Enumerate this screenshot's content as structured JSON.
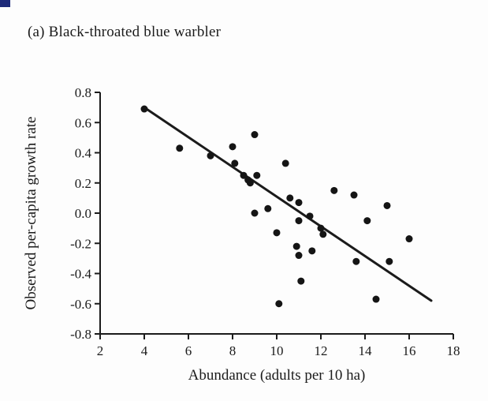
{
  "page": {
    "background": "#fdfdfd",
    "corner_mark_color": "#1e2b7a"
  },
  "figure": {
    "title": "(a) Black-throated blue warbler"
  },
  "chart_data": {
    "type": "scatter",
    "title": "(a) Black-throated blue warbler",
    "xlabel": "Abundance (adults per 10 ha)",
    "ylabel": "Observed per-capita growth rate",
    "xlim": [
      2,
      18
    ],
    "ylim": [
      -0.8,
      0.8
    ],
    "xticks": [
      2,
      4,
      6,
      8,
      10,
      12,
      14,
      16,
      18
    ],
    "xtick_labels": [
      "2",
      "4",
      "6",
      "8",
      "10",
      "12",
      "14",
      "16",
      "18"
    ],
    "yticks": [
      0.8,
      0.6,
      0.4,
      0.2,
      0.0,
      -0.2,
      -0.4,
      -0.6,
      -0.8
    ],
    "ytick_labels": [
      "0.8",
      "0.6",
      "0.4",
      "0.2",
      "0.0",
      "-0.2",
      "-0.4",
      "-0.6",
      "-0.8"
    ],
    "grid": false,
    "legend": "none",
    "ink_color": "#1b1b1b",
    "marker_color": "#151515",
    "points": [
      [
        4.0,
        0.69
      ],
      [
        5.6,
        0.43
      ],
      [
        7.0,
        0.38
      ],
      [
        8.0,
        0.44
      ],
      [
        8.1,
        0.33
      ],
      [
        8.5,
        0.25
      ],
      [
        8.7,
        0.22
      ],
      [
        8.8,
        0.2
      ],
      [
        9.0,
        0.52
      ],
      [
        9.1,
        0.25
      ],
      [
        9.0,
        0.0
      ],
      [
        9.6,
        0.03
      ],
      [
        10.0,
        -0.13
      ],
      [
        10.1,
        -0.6
      ],
      [
        10.4,
        0.33
      ],
      [
        10.6,
        0.1
      ],
      [
        11.0,
        0.07
      ],
      [
        11.0,
        -0.05
      ],
      [
        10.9,
        -0.22
      ],
      [
        11.0,
        -0.28
      ],
      [
        11.1,
        -0.45
      ],
      [
        11.5,
        -0.02
      ],
      [
        11.6,
        -0.25
      ],
      [
        12.0,
        -0.1
      ],
      [
        12.1,
        -0.14
      ],
      [
        12.6,
        0.15
      ],
      [
        13.5,
        0.12
      ],
      [
        13.6,
        -0.32
      ],
      [
        14.1,
        -0.05
      ],
      [
        14.5,
        -0.57
      ],
      [
        15.0,
        0.05
      ],
      [
        15.1,
        -0.32
      ],
      [
        16.0,
        -0.17
      ]
    ],
    "trend_line": {
      "x1": 4.0,
      "y1": 0.7,
      "x2": 17.0,
      "y2": -0.58
    }
  }
}
